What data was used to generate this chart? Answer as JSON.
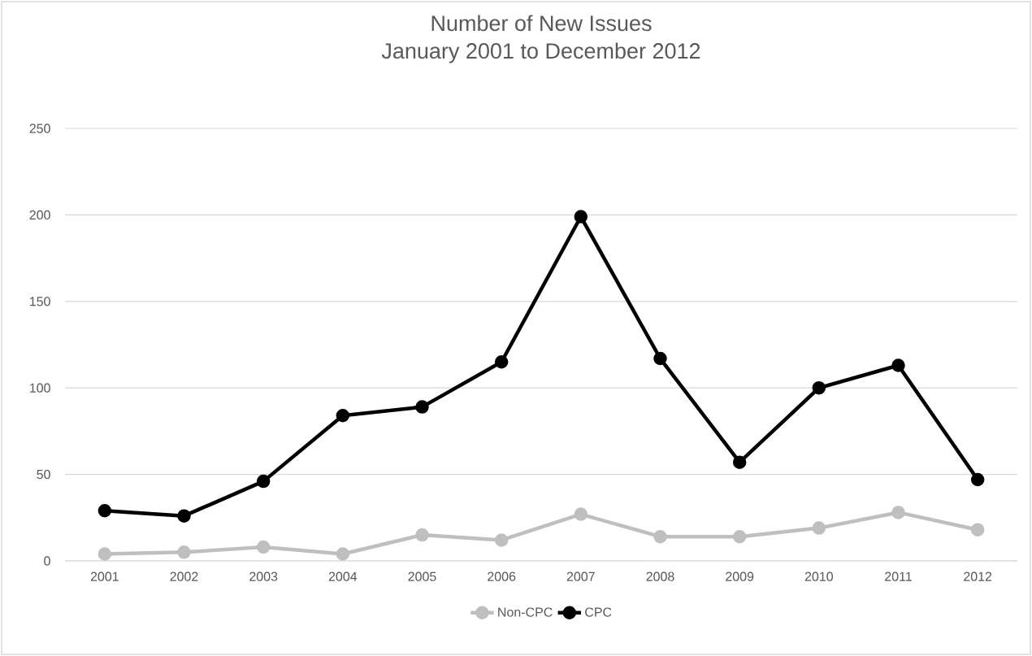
{
  "chart_data": {
    "type": "line",
    "title": "Number of New Issues",
    "subtitle": "January 2001 to December 2012",
    "categories": [
      "2001",
      "2002",
      "2003",
      "2004",
      "2005",
      "2006",
      "2007",
      "2008",
      "2009",
      "2010",
      "2011",
      "2012"
    ],
    "series": [
      {
        "name": "Non-CPC",
        "color": "#bfbfbf",
        "values": [
          4,
          5,
          8,
          4,
          15,
          12,
          27,
          14,
          14,
          19,
          28,
          18
        ]
      },
      {
        "name": "CPC",
        "color": "#000000",
        "values": [
          29,
          26,
          46,
          84,
          89,
          115,
          199,
          117,
          57,
          100,
          113,
          47
        ]
      }
    ],
    "ylim": [
      0,
      250
    ],
    "yticks": [
      0,
      50,
      100,
      150,
      200,
      250
    ],
    "grid": "y",
    "legend": "bottom",
    "marker": "circle",
    "line_style": "solid"
  }
}
